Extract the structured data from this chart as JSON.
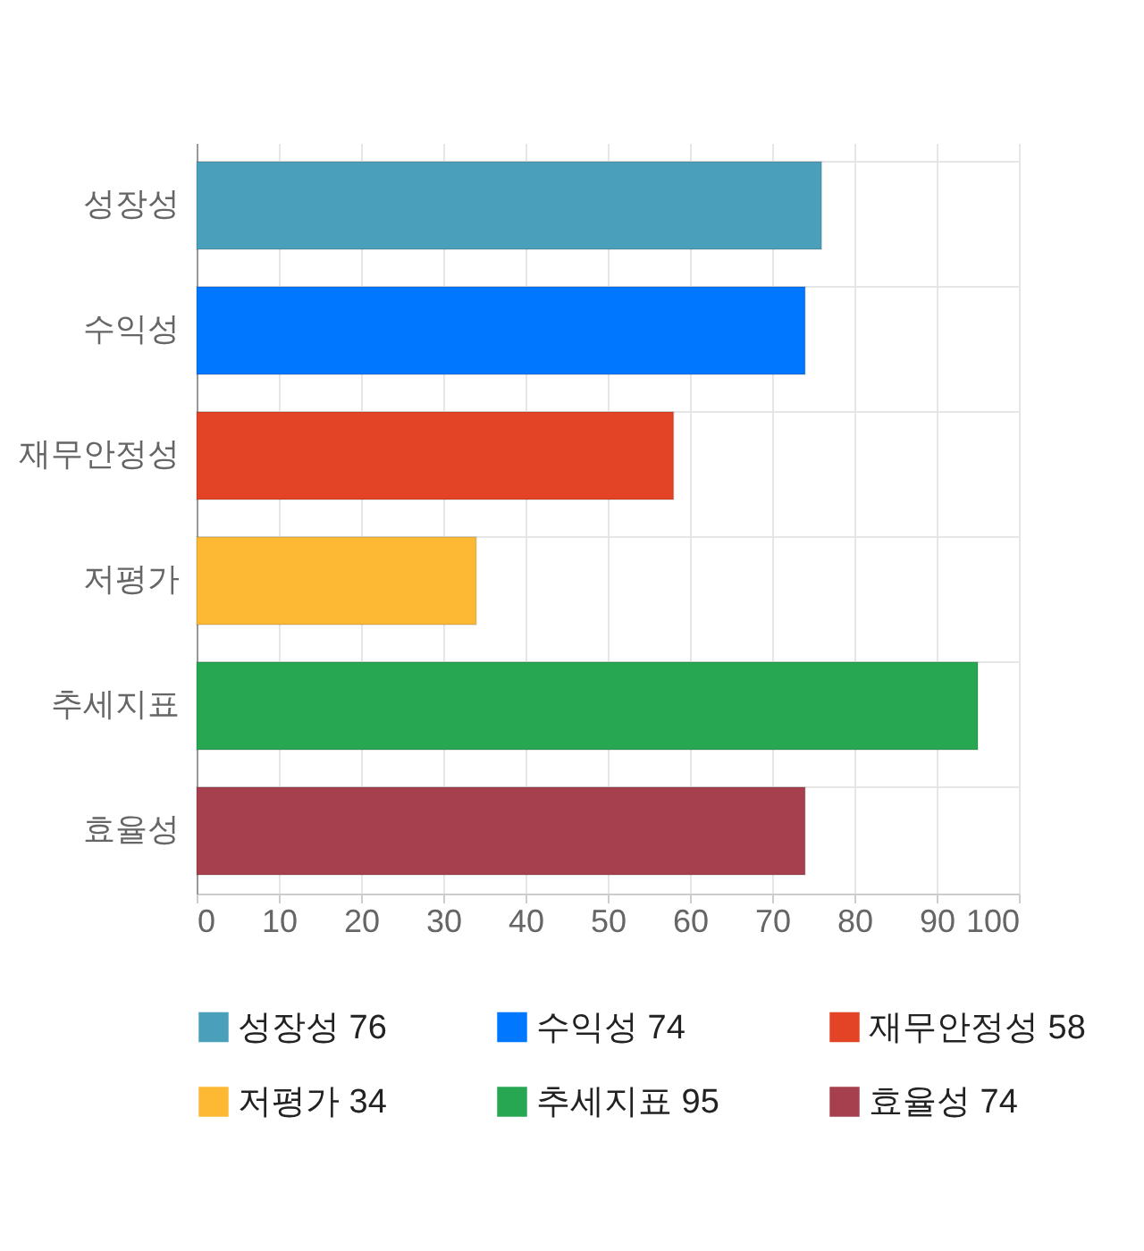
{
  "chart_data": {
    "type": "bar",
    "orientation": "horizontal",
    "categories": [
      "성장성",
      "수익성",
      "재무안정성",
      "저평가",
      "추세지표",
      "효율성"
    ],
    "series": [
      {
        "name": "성장성 76",
        "color": "#4aa0ba",
        "values": [
          76,
          null,
          null,
          null,
          null,
          null
        ]
      },
      {
        "name": "수익성 74",
        "color": "#0077ff",
        "values": [
          null,
          74,
          null,
          null,
          null,
          null
        ]
      },
      {
        "name": "재무안정성 58",
        "color": "#e24425",
        "values": [
          null,
          null,
          58,
          null,
          null,
          null
        ]
      },
      {
        "name": "저평가 34",
        "color": "#fdb933",
        "values": [
          null,
          null,
          null,
          34,
          null,
          null
        ]
      },
      {
        "name": "추세지표 95",
        "color": "#28a753",
        "values": [
          null,
          null,
          null,
          null,
          95,
          null
        ]
      },
      {
        "name": "효율성 74",
        "color": "#a6404f",
        "values": [
          null,
          null,
          null,
          null,
          null,
          74
        ]
      }
    ],
    "xlim": [
      0,
      100
    ],
    "xticks": [
      0,
      10,
      20,
      30,
      40,
      50,
      60,
      70,
      80,
      90,
      100
    ],
    "grid": true,
    "legend": "bottom"
  }
}
